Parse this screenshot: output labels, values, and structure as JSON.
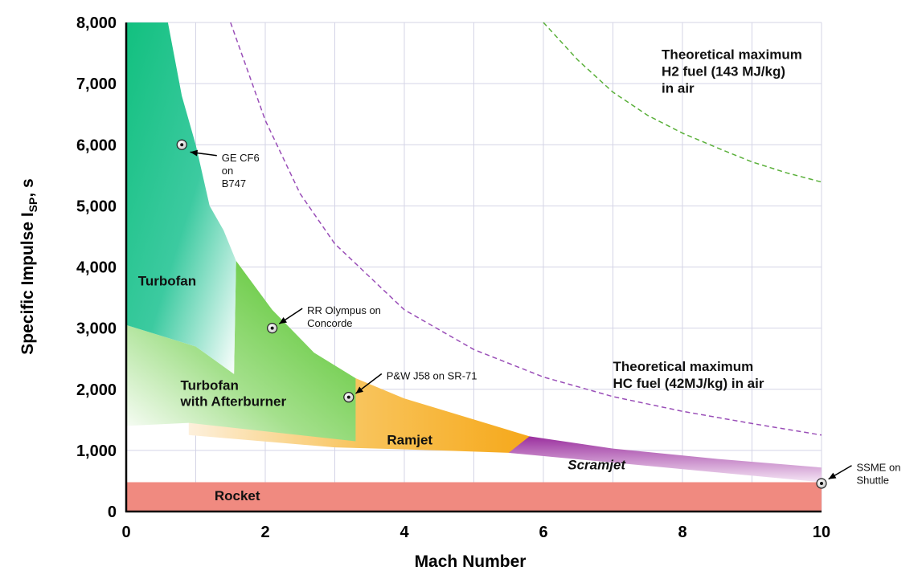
{
  "chart_data": {
    "type": "area",
    "xlabel": "Mach Number",
    "ylabel": "Specific Impulse I",
    "ylabel_sub": "SP",
    "ylabel_unit": ", s",
    "xlim": [
      0,
      10
    ],
    "ylim": [
      0,
      8000
    ],
    "x_ticks": [
      0,
      2,
      4,
      6,
      8,
      10
    ],
    "x_tick_labels": [
      "0",
      "2",
      "4",
      "6",
      "8",
      "10"
    ],
    "y_ticks": [
      0,
      1000,
      2000,
      3000,
      4000,
      5000,
      6000,
      7000,
      8000
    ],
    "y_tick_labels": [
      "0",
      "1,000",
      "2,000",
      "3,000",
      "4,000",
      "5,000",
      "6,000",
      "7,000",
      "8,000"
    ],
    "grid": true,
    "regions": [
      {
        "name": "Rocket",
        "color": "#f08a80",
        "polygon": [
          [
            0,
            0
          ],
          [
            10,
            0
          ],
          [
            10,
            480
          ],
          [
            0,
            480
          ]
        ]
      },
      {
        "name": "Ramjet",
        "color": "#f7b030",
        "polygon": [
          [
            0.9,
            1450
          ],
          [
            3.3,
            2180
          ],
          [
            4.0,
            1850
          ],
          [
            5.8,
            1230
          ],
          [
            5.75,
            950
          ],
          [
            4.5,
            1000
          ],
          [
            3.0,
            1050
          ],
          [
            0.9,
            1250
          ]
        ]
      },
      {
        "name": "Scramjet",
        "color": "#a040a8",
        "label_italic": true,
        "polygon": [
          [
            5.8,
            1230
          ],
          [
            7.0,
            1030
          ],
          [
            8.5,
            860
          ],
          [
            10,
            720
          ],
          [
            10,
            480
          ],
          [
            5.5,
            960
          ]
        ]
      },
      {
        "name": "Turbofan with Afterburner",
        "color": "#5cc83a",
        "polygon": [
          [
            0,
            3050
          ],
          [
            1.0,
            2700
          ],
          [
            1.55,
            2250
          ],
          [
            1.58,
            4100
          ],
          [
            2.1,
            3300
          ],
          [
            2.7,
            2600
          ],
          [
            3.3,
            2180
          ],
          [
            3.3,
            1150
          ],
          [
            0.9,
            1450
          ],
          [
            0,
            1400
          ]
        ]
      },
      {
        "name": "Turbofan",
        "color": "#1fbf8a",
        "polygon": [
          [
            0,
            8000
          ],
          [
            0.6,
            8000
          ],
          [
            0.8,
            6800
          ],
          [
            1.0,
            6000
          ],
          [
            1.2,
            5000
          ],
          [
            1.4,
            4600
          ],
          [
            1.58,
            4100
          ],
          [
            1.55,
            2250
          ],
          [
            1.0,
            2700
          ],
          [
            0,
            3050
          ]
        ]
      }
    ],
    "points": [
      {
        "x": 0.8,
        "y": 6000,
        "label": [
          "GE CF6",
          "on",
          "B747"
        ]
      },
      {
        "x": 2.1,
        "y": 3000,
        "label": [
          "RR Olympus on",
          "Concorde"
        ]
      },
      {
        "x": 3.2,
        "y": 1870,
        "label": [
          "P&W J58 on SR-71"
        ]
      },
      {
        "x": 10,
        "y": 460,
        "label": [
          "SSME on",
          "Shuttle"
        ]
      }
    ],
    "curves": [
      {
        "name": "HC",
        "color": "#9a4fb8",
        "label": [
          "Theoretical maximum",
          "HC fuel (42MJ/kg) in air"
        ],
        "points": [
          [
            1.5,
            8000
          ],
          [
            2.0,
            6400
          ],
          [
            2.5,
            5200
          ],
          [
            3.0,
            4380
          ],
          [
            4.0,
            3300
          ],
          [
            5.0,
            2650
          ],
          [
            6.0,
            2200
          ],
          [
            7.0,
            1880
          ],
          [
            8.0,
            1640
          ],
          [
            9.0,
            1440
          ],
          [
            10.0,
            1250
          ]
        ]
      },
      {
        "name": "H2",
        "color": "#5ab03a",
        "label": [
          "Theoretical maximum",
          "H2 fuel (143 MJ/kg)",
          "in air"
        ],
        "points": [
          [
            6.0,
            8000
          ],
          [
            6.5,
            7380
          ],
          [
            7.0,
            6860
          ],
          [
            7.5,
            6480
          ],
          [
            8.0,
            6190
          ],
          [
            8.5,
            5950
          ],
          [
            9.0,
            5720
          ],
          [
            9.5,
            5540
          ],
          [
            10.0,
            5390
          ]
        ]
      }
    ]
  }
}
